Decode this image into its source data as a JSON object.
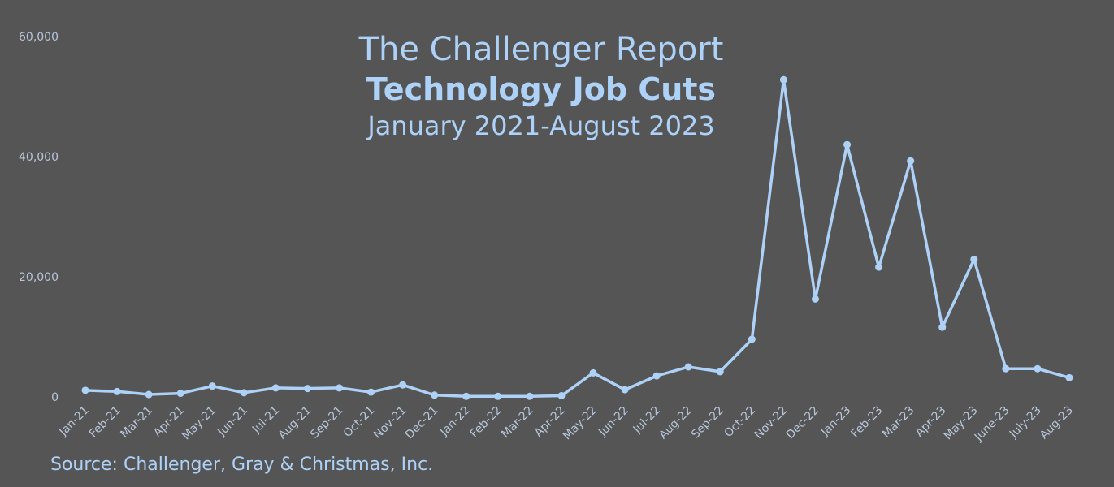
{
  "title": {
    "line1": "The Challenger Report",
    "line2": "Technology Job Cuts",
    "line3": "January 2021-August 2023"
  },
  "source": "Source: Challenger, Gray & Christmas, Inc.",
  "colors": {
    "background": "#555555",
    "line": "#aed2f7",
    "text": "#aed2f7",
    "tick_text": "#b9c7db"
  },
  "chart_data": {
    "type": "line",
    "categories": [
      "Jan-21",
      "Feb-21",
      "Mar-21",
      "Apr-21",
      "May-21",
      "Jun-21",
      "Jul-21",
      "Aug-21",
      "Sep-21",
      "Oct-21",
      "Nov-21",
      "Dec-21",
      "Jan-22",
      "Feb-22",
      "Mar-22",
      "Apr-22",
      "May-22",
      "Jun-22",
      "Jul-22",
      "Aug-22",
      "Sep-22",
      "Oct-22",
      "Nov-22",
      "Dec-22",
      "Jan-23",
      "Feb-23",
      "Mar-23",
      "Apr-23",
      "May-23",
      "June-23",
      "July-23",
      "Aug-23"
    ],
    "series": [
      {
        "values": [
          1100,
          900,
          400,
          600,
          1800,
          700,
          1500,
          1400,
          1500,
          800,
          2000,
          300,
          100,
          100,
          100,
          200,
          4000,
          1200,
          3500,
          5000,
          4200,
          9600,
          52800,
          16300,
          42000,
          21600,
          39300,
          11600,
          22900,
          4700,
          4700,
          3200
        ]
      }
    ],
    "yticks": [
      0,
      20000,
      40000,
      60000
    ],
    "ytick_labels": [
      "0",
      "20,000",
      "40,000",
      "60,000"
    ],
    "ylim": [
      0,
      60000
    ],
    "xlabel": "",
    "ylabel": "",
    "grid": false,
    "legend": "none"
  }
}
